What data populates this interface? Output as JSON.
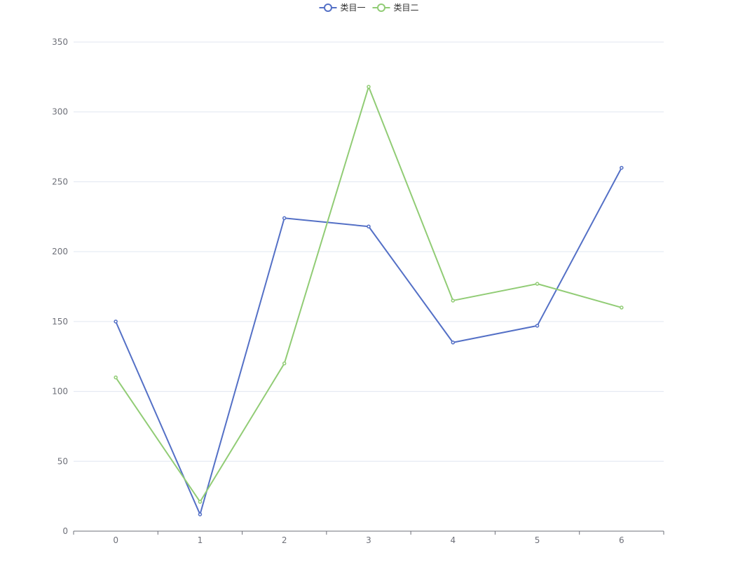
{
  "chart_data": {
    "type": "line",
    "title": "",
    "xlabel": "",
    "ylabel": "",
    "x": [
      "0",
      "1",
      "2",
      "3",
      "4",
      "5",
      "6"
    ],
    "ylim": [
      0,
      350
    ],
    "yticks": [
      "0",
      "50",
      "100",
      "150",
      "200",
      "250",
      "300",
      "350"
    ],
    "grid": true,
    "legend_position": "top-center",
    "series": [
      {
        "name": "类目一",
        "color": "#5470c6",
        "values": [
          150,
          12,
          224,
          218,
          135,
          147,
          260
        ]
      },
      {
        "name": "类目二",
        "color": "#91cc75",
        "values": [
          110,
          21,
          120,
          318,
          165,
          177,
          160
        ]
      }
    ]
  }
}
